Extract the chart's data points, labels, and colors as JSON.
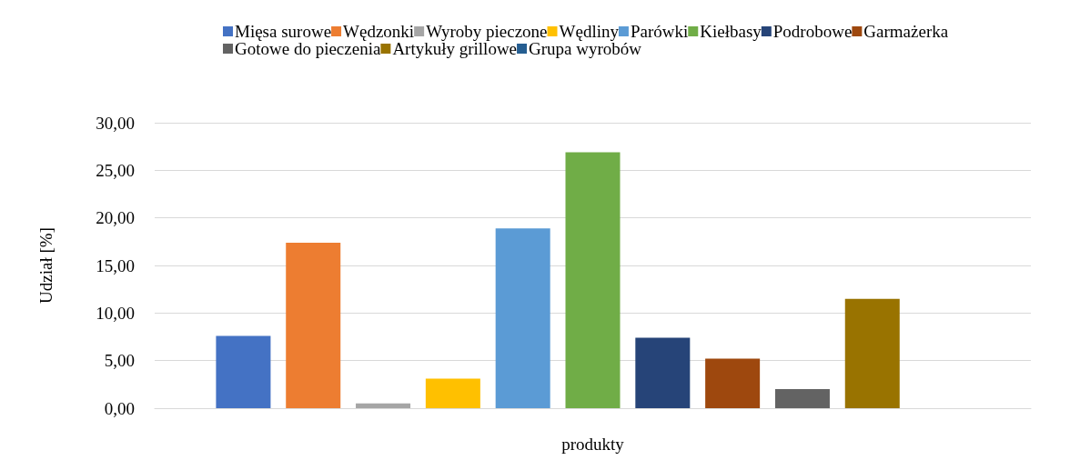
{
  "chart_data": {
    "type": "bar",
    "xlabel": "produkty",
    "ylabel": "Udział [%]",
    "categories": [
      null
    ],
    "series": [
      {
        "name": "Mięsa surowe",
        "color": "#4472c4",
        "values": [
          7.6
        ]
      },
      {
        "name": "Wędzonki",
        "color": "#ed7d31",
        "values": [
          17.4
        ]
      },
      {
        "name": "Wyroby pieczone",
        "color": "#a5a5a5",
        "values": [
          0.5
        ]
      },
      {
        "name": "Wędliny",
        "color": "#ffc000",
        "values": [
          3.1
        ]
      },
      {
        "name": "Parówki",
        "color": "#5b9bd5",
        "values": [
          18.9
        ]
      },
      {
        "name": "Kiełbasy",
        "color": "#70ad47",
        "values": [
          26.9
        ]
      },
      {
        "name": "Podrobowe",
        "color": "#264478",
        "values": [
          7.4
        ]
      },
      {
        "name": "Garmażerka",
        "color": "#9e480e",
        "values": [
          5.2
        ]
      },
      {
        "name": "Gotowe do pieczenia",
        "color": "#636363",
        "values": [
          2.0
        ]
      },
      {
        "name": "Artykuły grillowe",
        "color": "#997300",
        "values": [
          11.5
        ]
      },
      {
        "name": "Grupa wyrobów",
        "color": "#255e91",
        "values": [
          null
        ]
      }
    ],
    "ylim": [
      0,
      30
    ],
    "yticks": [
      {
        "value": 0,
        "label": "0,00"
      },
      {
        "value": 5,
        "label": "5,00"
      },
      {
        "value": 10,
        "label": "10,00"
      },
      {
        "value": 15,
        "label": "15,00"
      },
      {
        "value": 20,
        "label": "20,00"
      },
      {
        "value": 25,
        "label": "25,00"
      },
      {
        "value": 30,
        "label": "30,00"
      }
    ],
    "grid": "y",
    "legend": "top"
  }
}
